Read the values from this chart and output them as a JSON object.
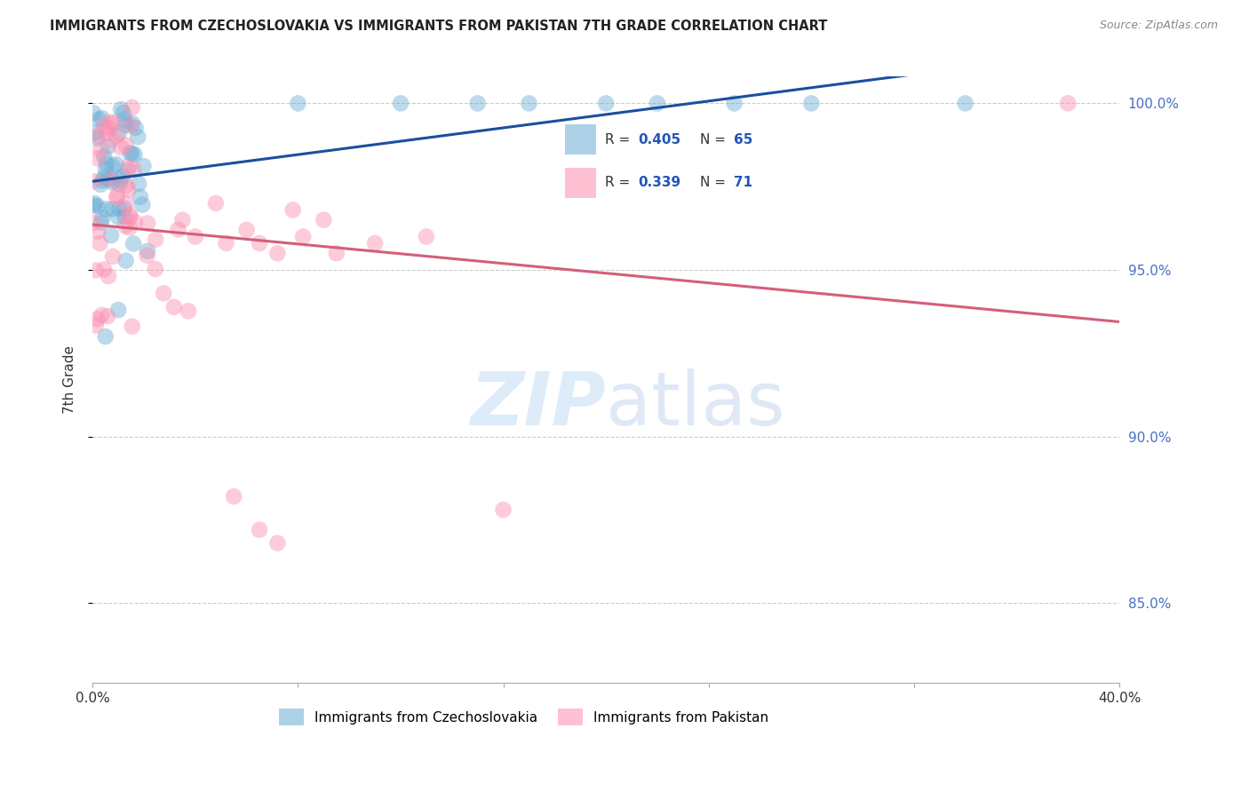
{
  "title": "IMMIGRANTS FROM CZECHOSLOVAKIA VS IMMIGRANTS FROM PAKISTAN 7TH GRADE CORRELATION CHART",
  "source": "Source: ZipAtlas.com",
  "ylabel": "7th Grade",
  "legend_blue_label": "Immigrants from Czechoslovakia",
  "legend_pink_label": "Immigrants from Pakistan",
  "R_blue": 0.405,
  "N_blue": 65,
  "R_pink": 0.339,
  "N_pink": 71,
  "blue_color": "#6baed6",
  "pink_color": "#fc8eb0",
  "trendline_blue": "#1a4fa0",
  "trendline_pink": "#d45f7a",
  "xlim": [
    0.0,
    0.4
  ],
  "ylim": [
    0.826,
    1.008
  ],
  "yticks": [
    1.0,
    0.95,
    0.9,
    0.85
  ],
  "ytick_labels": [
    "100.0%",
    "95.0%",
    "90.0%",
    "85.0%"
  ],
  "xtick_labels_show": [
    "0.0%",
    "40.0%"
  ],
  "marker_size": 180,
  "marker_alpha": 0.45
}
